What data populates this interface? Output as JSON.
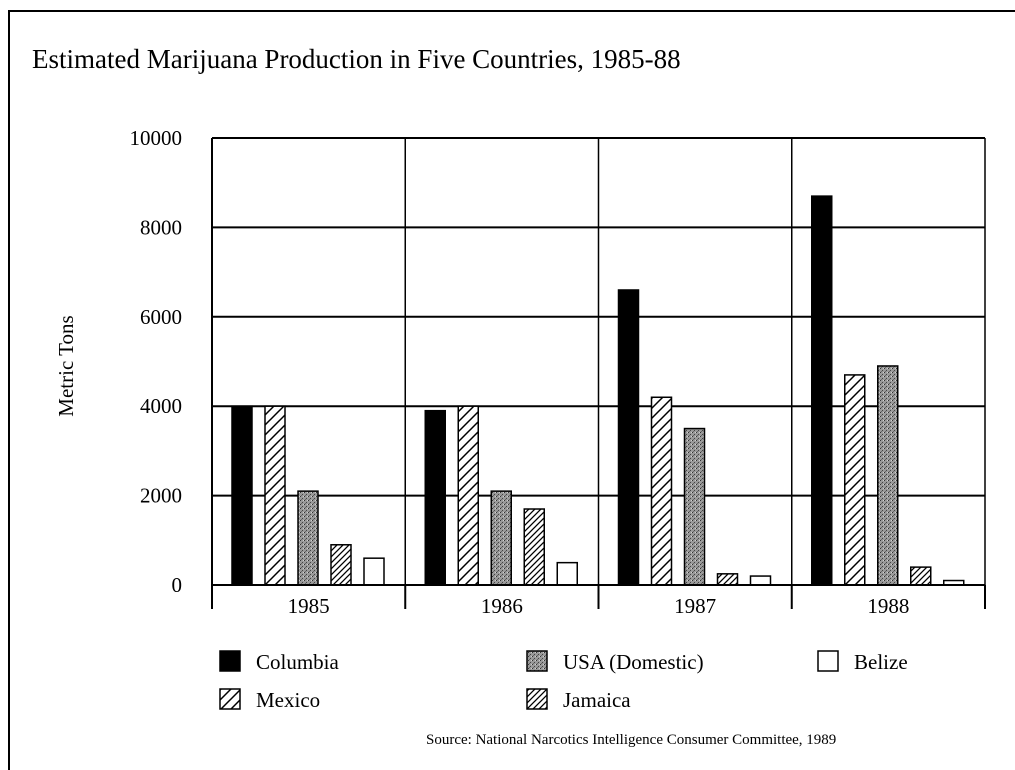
{
  "chart_data": {
    "type": "bar",
    "title": "Estimated Marijuana Production in Five Countries, 1985-88",
    "ylabel": "Metric Tons",
    "xlabel": "",
    "ylim": [
      0,
      10000
    ],
    "yticks": [
      0,
      2000,
      4000,
      6000,
      8000,
      10000
    ],
    "grid": true,
    "categories": [
      "1985",
      "1986",
      "1987",
      "1988"
    ],
    "series": [
      {
        "name": "Columbia",
        "values": [
          4000,
          3900,
          6600,
          8700
        ]
      },
      {
        "name": "Mexico",
        "values": [
          4000,
          4000,
          4200,
          4700
        ]
      },
      {
        "name": "USA (Domestic)",
        "values": [
          2100,
          2100,
          3500,
          4900
        ]
      },
      {
        "name": "Jamaica",
        "values": [
          900,
          1700,
          250,
          400
        ]
      },
      {
        "name": "Belize",
        "values": [
          600,
          500,
          200,
          100
        ]
      }
    ],
    "legend_position": "bottom",
    "source": "Source: National Narcotics Intelligence Consumer Committee, 1989"
  }
}
